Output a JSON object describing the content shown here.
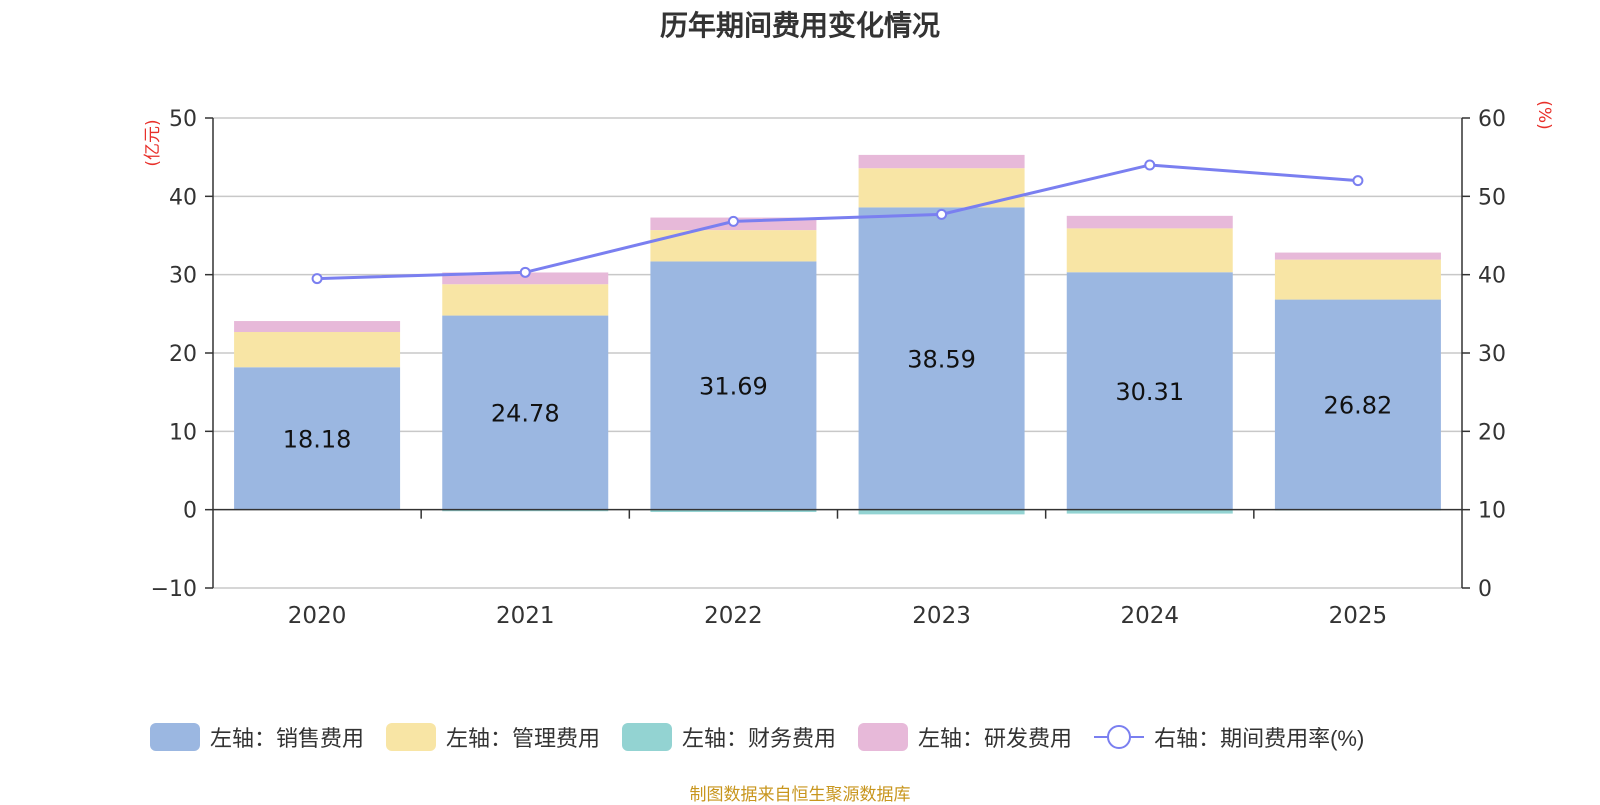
{
  "chart_data": {
    "type": "bar",
    "title": "历年期间费用变化情况",
    "categories": [
      "2020",
      "2021",
      "2022",
      "2023",
      "2024",
      "2025"
    ],
    "left_axis": {
      "unit_label": "(亿元)",
      "ylim": [
        -10,
        50
      ],
      "ticks": [
        -10,
        0,
        10,
        20,
        30,
        40,
        50
      ]
    },
    "right_axis": {
      "unit_label": "(%)",
      "ylim": [
        0,
        60
      ],
      "ticks": [
        0,
        10,
        20,
        30,
        40,
        50,
        60
      ]
    },
    "series": [
      {
        "name": "左轴：销售费用",
        "type": "bar",
        "stack": "left",
        "color": "#9bb7e1",
        "values": [
          18.18,
          24.78,
          31.69,
          38.59,
          30.31,
          26.82
        ],
        "show_labels": true
      },
      {
        "name": "左轴：管理费用",
        "type": "bar",
        "stack": "left",
        "color": "#f8e5a5",
        "values": [
          4.5,
          4.0,
          4.0,
          5.0,
          5.6,
          5.1
        ]
      },
      {
        "name": "左轴：财务费用",
        "type": "bar",
        "stack": "left",
        "color": "#93d3d2",
        "values": [
          0.0,
          -0.2,
          -0.3,
          -0.6,
          -0.5,
          -0.1
        ]
      },
      {
        "name": "左轴：研发费用",
        "type": "bar",
        "stack": "left",
        "color": "#e7b9d9",
        "values": [
          1.4,
          1.5,
          1.6,
          1.7,
          1.6,
          0.9
        ]
      },
      {
        "name": "右轴：期间费用率(%)",
        "type": "line",
        "axis": "right",
        "color": "#7a7ff0",
        "values": [
          39.5,
          40.3,
          46.8,
          47.7,
          54.0,
          52.0
        ]
      }
    ]
  },
  "footer": {
    "source": "制图数据来自恒生聚源数据库"
  }
}
